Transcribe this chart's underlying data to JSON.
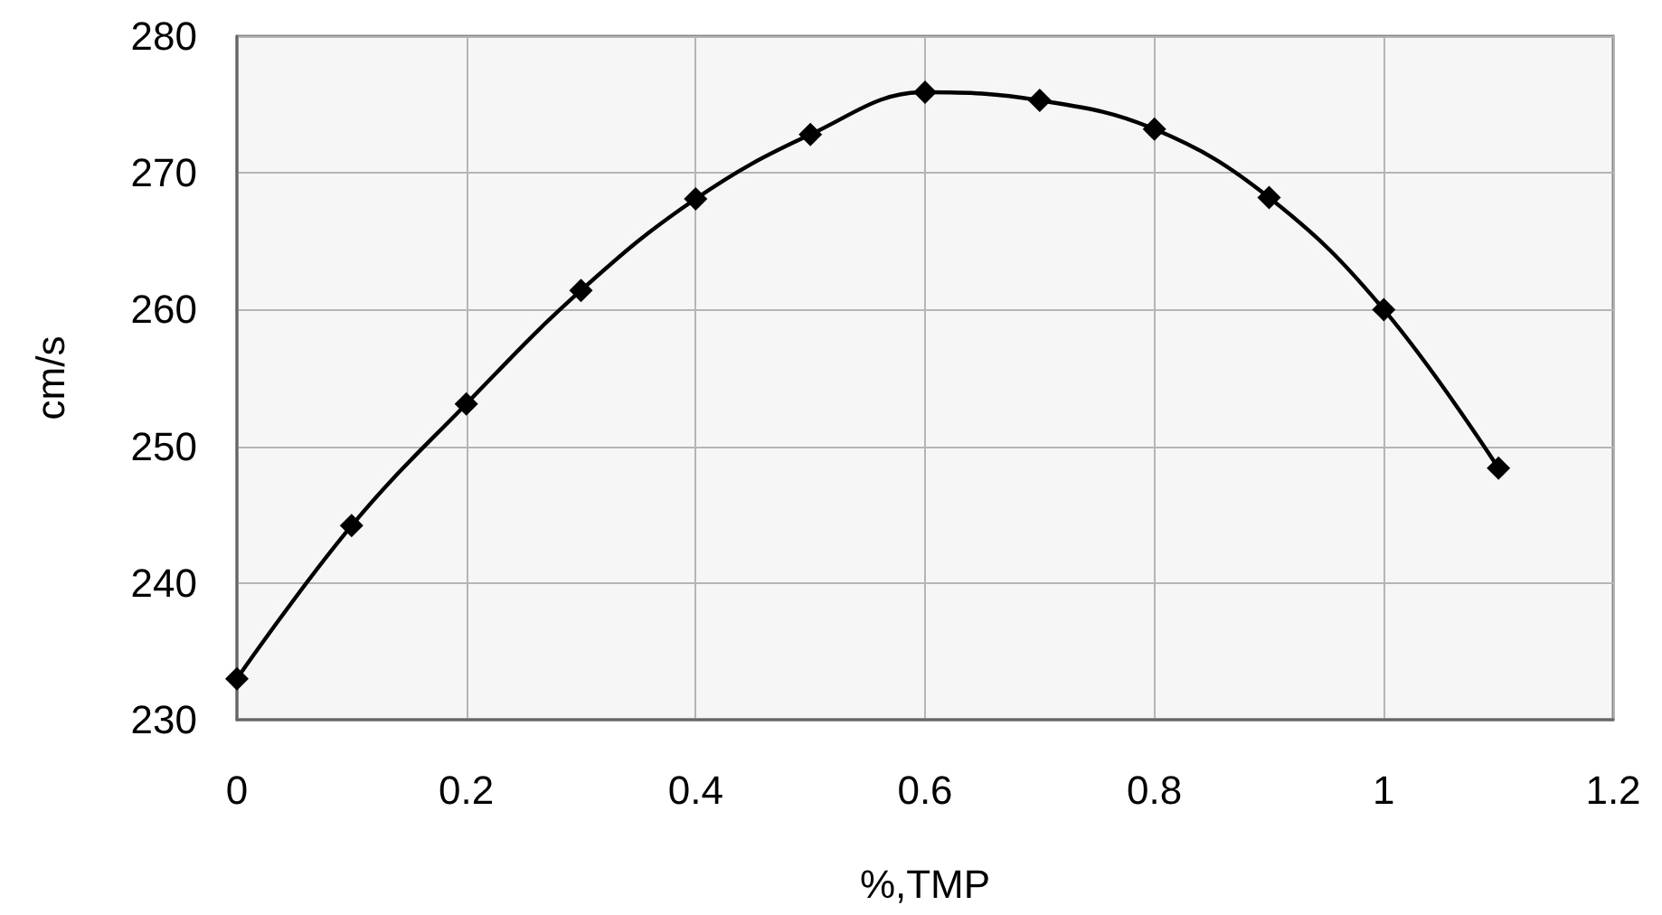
{
  "chart_data": {
    "type": "line",
    "xlabel": "%,TMP",
    "ylabel": "cm/s",
    "x": [
      0,
      0.1,
      0.2,
      0.3,
      0.4,
      0.5,
      0.6,
      0.7,
      0.8,
      0.9,
      1.0,
      1.1
    ],
    "series": [
      {
        "color": "#000000",
        "values": [
          233.0,
          244.2,
          253.1,
          261.4,
          268.1,
          272.8,
          275.9,
          275.3,
          273.2,
          268.2,
          260.0,
          248.4
        ]
      }
    ],
    "xlim": [
      0,
      1.2
    ],
    "xticks": [
      0,
      0.2,
      0.4,
      0.6,
      0.8,
      1,
      1.2
    ],
    "ylim": [
      230,
      280
    ],
    "yticks": [
      230,
      240,
      250,
      260,
      270,
      280
    ],
    "grid": true,
    "marker": "diamond",
    "line_style": "solid"
  }
}
